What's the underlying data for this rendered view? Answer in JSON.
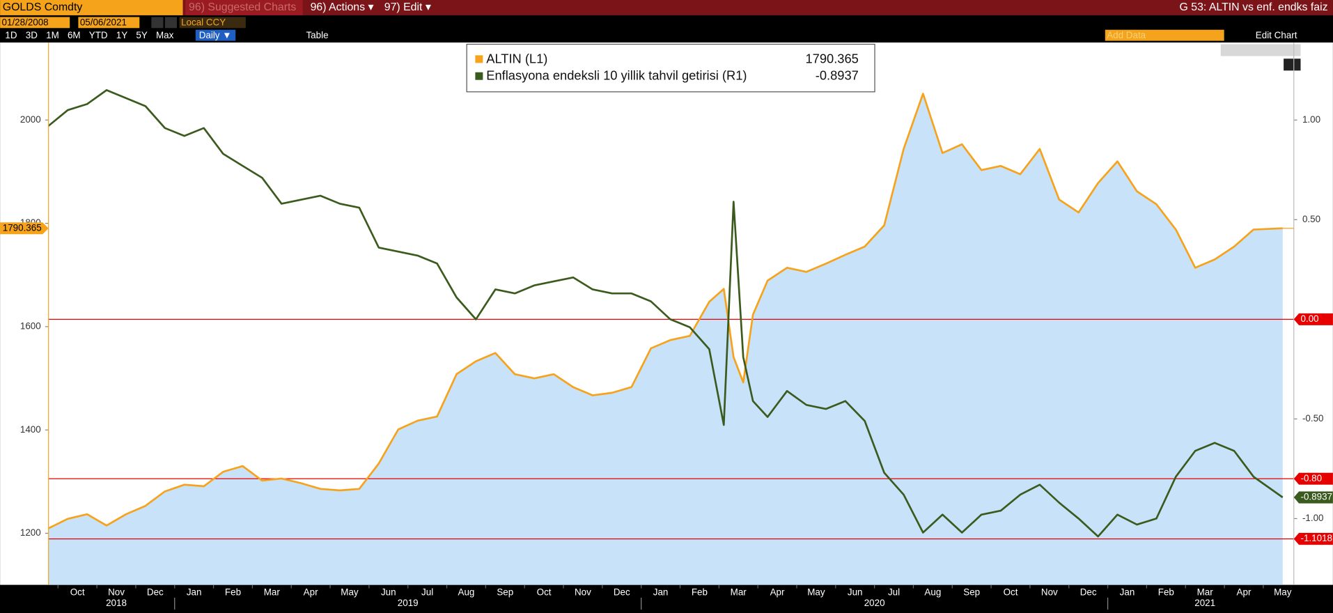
{
  "toolbar": {
    "security": "GOLDS Comdty",
    "suggested": "96) Suggested Charts",
    "actions": "96) Actions ▾",
    "edit": "97) Edit ▾",
    "title": "G 53: ALTIN vs enf. endks faiz",
    "start_date": "01/28/2008",
    "end_date": "05/06/2021",
    "currency": "Local CCY",
    "ranges": [
      "1D",
      "3D",
      "1M",
      "6M",
      "YTD",
      "1Y",
      "5Y",
      "Max"
    ],
    "frequency": "Daily ▼",
    "table": "Table",
    "add_data": "Add Data",
    "edit_chart": "Edit Chart"
  },
  "chart_data": {
    "type": "line",
    "x": [
      "2018-09",
      "2018-10",
      "2018-10",
      "2018-11",
      "2018-11",
      "2018-12",
      "2018-12",
      "2019-01",
      "2019-01",
      "2019-02",
      "2019-02",
      "2019-03",
      "2019-03",
      "2019-04",
      "2019-04",
      "2019-05",
      "2019-05",
      "2019-06",
      "2019-06",
      "2019-07",
      "2019-07",
      "2019-08",
      "2019-08",
      "2019-09",
      "2019-09",
      "2019-10",
      "2019-10",
      "2019-11",
      "2019-11",
      "2019-12",
      "2019-12",
      "2020-01",
      "2020-01",
      "2020-02",
      "2020-02",
      "2020-03",
      "2020-03",
      "2020-03",
      "2020-03",
      "2020-04",
      "2020-04",
      "2020-05",
      "2020-05",
      "2020-06",
      "2020-06",
      "2020-07",
      "2020-07",
      "2020-08",
      "2020-08",
      "2020-09",
      "2020-09",
      "2020-10",
      "2020-10",
      "2020-11",
      "2020-11",
      "2020-12",
      "2020-12",
      "2021-01",
      "2021-01",
      "2021-02",
      "2021-02",
      "2021-03",
      "2021-03",
      "2021-04",
      "2021-04",
      "2021-05"
    ],
    "series": [
      {
        "name": "ALTIN (L1)",
        "color": "#f7a21b",
        "area_color": "#c8e2fa",
        "axis": "y",
        "values": [
          1200,
          1228,
          1237,
          1215,
          1237,
          1253,
          1281,
          1294,
          1291,
          1319,
          1330,
          1302,
          1306,
          1297,
          1286,
          1283,
          1286,
          1335,
          1401,
          1418,
          1426,
          1508,
          1533,
          1549,
          1508,
          1500,
          1508,
          1483,
          1467,
          1472,
          1483,
          1558,
          1574,
          1582,
          1648,
          1673,
          1541,
          1492,
          1623,
          1689,
          1714,
          1706,
          1722,
          1739,
          1755,
          1796,
          1944,
          2051,
          1936,
          1953,
          1903,
          1911,
          1895,
          1944,
          1846,
          1821,
          1878,
          1920,
          1862,
          1837,
          1788,
          1714,
          1730,
          1755,
          1788,
          1790.365
        ]
      },
      {
        "name": "Enflasyona endeksli 10 yillik tahvil getirisi (R1)",
        "color": "#3b5b1e",
        "axis": "y2",
        "values": [
          0.93,
          1.05,
          1.08,
          1.15,
          1.11,
          1.07,
          0.96,
          0.92,
          0.96,
          0.83,
          0.77,
          0.71,
          0.58,
          0.6,
          0.62,
          0.58,
          0.56,
          0.36,
          0.34,
          0.32,
          0.28,
          0.11,
          0.0,
          0.15,
          0.13,
          0.17,
          0.19,
          0.21,
          0.15,
          0.13,
          0.13,
          0.09,
          0.0,
          -0.04,
          -0.15,
          -0.53,
          0.59,
          -0.19,
          -0.41,
          -0.49,
          -0.36,
          -0.43,
          -0.45,
          -0.41,
          -0.51,
          -0.77,
          -0.88,
          -1.07,
          -0.98,
          -1.07,
          -0.98,
          -0.96,
          -0.88,
          -0.83,
          -0.92,
          -1.0,
          -1.09,
          -0.98,
          -1.03,
          -1.0,
          -0.79,
          -0.66,
          -0.62,
          -0.66,
          -0.79,
          -0.8937
        ]
      }
    ],
    "ylim": [
      1100,
      2150
    ],
    "yticks": [
      1200,
      1400,
      1600,
      1800,
      2000
    ],
    "y2lim": [
      -1.333,
      1.389
    ],
    "y2ticks": [
      {
        "value": 1,
        "label": "1.00"
      },
      {
        "value": 0.5,
        "label": "0.50"
      },
      {
        "value": -0.5,
        "label": "-0.50"
      },
      {
        "value": -1,
        "label": "-1.00"
      }
    ],
    "reference_lines": [
      {
        "value": 0,
        "label": "0.00"
      },
      {
        "value": -0.8,
        "label": "-0.80"
      },
      {
        "value": -1.1018,
        "label": "-1.1018"
      }
    ],
    "reference_color": "#e60000",
    "xticks": [
      {
        "value": "2018-10",
        "label": "Oct"
      },
      {
        "value": "2018-11",
        "label": "Nov"
      },
      {
        "value": "2018-12",
        "label": "Dec"
      },
      {
        "value": "2019-01",
        "label": "Jan"
      },
      {
        "value": "2019-02",
        "label": "Feb"
      },
      {
        "value": "2019-03",
        "label": "Mar"
      },
      {
        "value": "2019-04",
        "label": "Apr"
      },
      {
        "value": "2019-05",
        "label": "May"
      },
      {
        "value": "2019-06",
        "label": "Jun"
      },
      {
        "value": "2019-07",
        "label": "Jul"
      },
      {
        "value": "2019-08",
        "label": "Aug"
      },
      {
        "value": "2019-09",
        "label": "Sep"
      },
      {
        "value": "2019-10",
        "label": "Oct"
      },
      {
        "value": "2019-11",
        "label": "Nov"
      },
      {
        "value": "2019-12",
        "label": "Dec"
      },
      {
        "value": "2020-01",
        "label": "Jan"
      },
      {
        "value": "2020-02",
        "label": "Feb"
      },
      {
        "value": "2020-03",
        "label": "Mar"
      },
      {
        "value": "2020-04",
        "label": "Apr"
      },
      {
        "value": "2020-05",
        "label": "May"
      },
      {
        "value": "2020-06",
        "label": "Jun"
      },
      {
        "value": "2020-07",
        "label": "Jul"
      },
      {
        "value": "2020-08",
        "label": "Aug"
      },
      {
        "value": "2020-09",
        "label": "Sep"
      },
      {
        "value": "2020-10",
        "label": "Oct"
      },
      {
        "value": "2020-11",
        "label": "Nov"
      },
      {
        "value": "2020-12",
        "label": "Dec"
      },
      {
        "value": "2021-01",
        "label": "Jan"
      },
      {
        "value": "2021-02",
        "label": "Feb"
      },
      {
        "value": "2021-03",
        "label": "Mar"
      },
      {
        "value": "2021-04",
        "label": "Apr"
      },
      {
        "value": "2021-05",
        "label": "May"
      }
    ],
    "years": [
      "2018",
      "2019",
      "2020",
      "2021"
    ]
  }
}
